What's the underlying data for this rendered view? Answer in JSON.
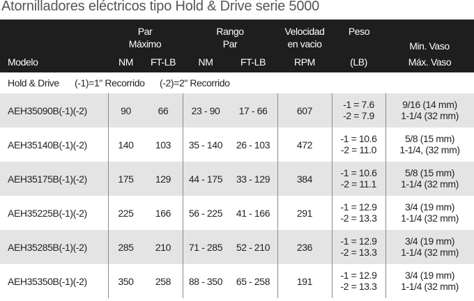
{
  "title": "Atornilladores eléctricos tipo Hold & Drive serie 5000",
  "header": {
    "par": [
      "Par",
      "Máximo"
    ],
    "rango": [
      "Rango",
      "Par"
    ],
    "velocidad": [
      "Velocidad",
      "en vacio"
    ],
    "peso": "Peso",
    "vaso_min": "Min. Vaso",
    "units": [
      "Modelo",
      "NM",
      "FT-LB",
      "NM",
      "FT-LB",
      "RPM",
      "(LB)",
      "Máx. Vaso"
    ]
  },
  "subheader": [
    "Hold & Drive",
    "(-1)=1\" Recorrido",
    "(-2)=2\" Recorrido"
  ],
  "rows": [
    {
      "cells": [
        "AEH35090B(-1)(-2)",
        "90",
        "66",
        "23 - 90",
        "17 - 66",
        "607"
      ],
      "peso": [
        "-1 = 7.6",
        "-2 = 7.9"
      ],
      "vaso": [
        "9/16 (14 mm)",
        "1-1/4 (32 mm)"
      ]
    },
    {
      "cells": [
        "AEH35140B(-1)(-2)",
        "140",
        "103",
        "35 - 140",
        "26 - 103",
        "472"
      ],
      "peso": [
        "-1 = 10.6",
        "-2 = 11.0"
      ],
      "vaso": [
        "5/8 (15 mm)",
        "1-1/4, (32 mm)"
      ]
    },
    {
      "cells": [
        "AEH35175B(-1)(-2)",
        "175",
        "129",
        "44 - 175",
        "33 - 129",
        "384"
      ],
      "peso": [
        "-1 = 10.6",
        "-2 = 11.1"
      ],
      "vaso": [
        "5/8 (15 mm)",
        "1-1/4 (32 mm)"
      ]
    },
    {
      "cells": [
        "AEH35225B(-1)(-2)",
        "225",
        "166",
        "56 - 225",
        "41 - 166",
        "291"
      ],
      "peso": [
        "-1 = 12.9",
        "-2 = 13.3"
      ],
      "vaso": [
        "3/4 (19 mm)",
        "1-1/4 (32 mm)"
      ]
    },
    {
      "cells": [
        "AEH35285B(-1)(-2)",
        "285",
        "210",
        "71 - 285",
        "52 - 210",
        "236"
      ],
      "peso": [
        "-1 = 12.9",
        "-2 = 13.3"
      ],
      "vaso": [
        "3/4 (19 mm)",
        "1-1/4 (32 mm)"
      ]
    },
    {
      "cells": [
        "AEH35350B(-1)(-2)",
        "350",
        "258",
        "88 - 350",
        "65 - 258",
        "191"
      ],
      "peso": [
        "-1 = 12.9",
        "-2 = 13.3"
      ],
      "vaso": [
        "3/4 (19 mm)",
        "1-1/4 (32 mm)"
      ]
    }
  ]
}
